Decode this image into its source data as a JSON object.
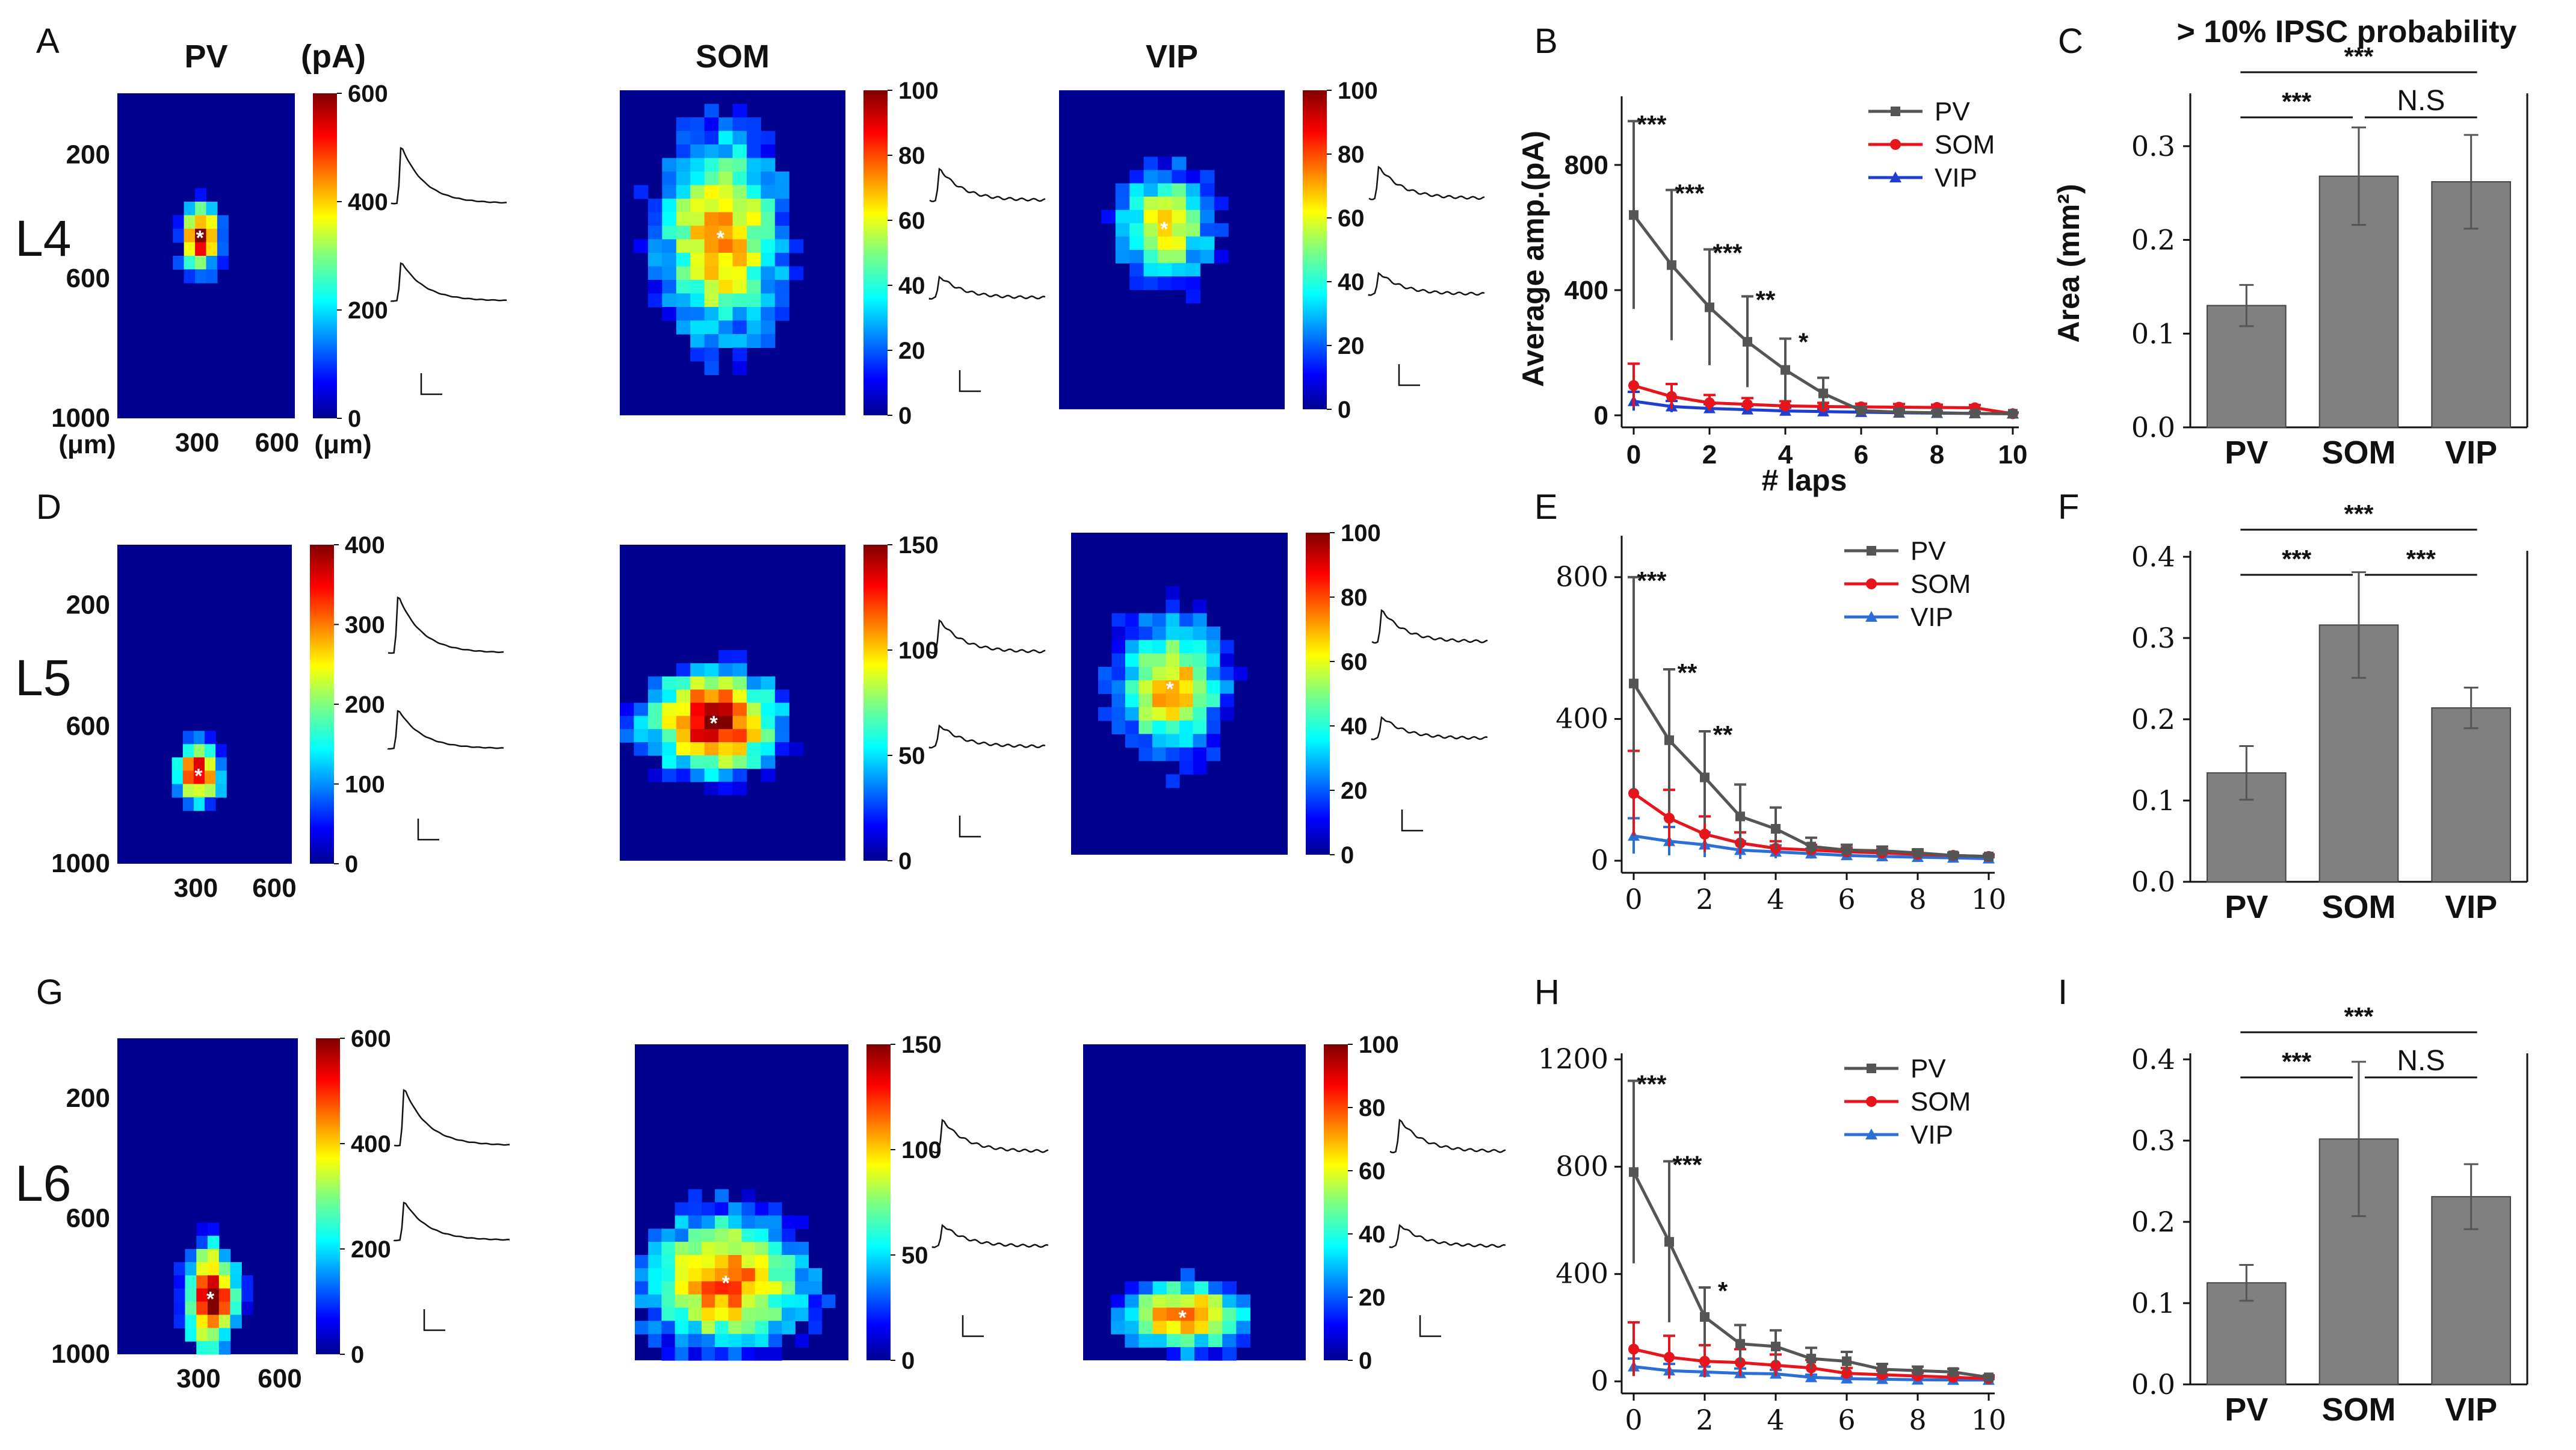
{
  "colors": {
    "PV": "#555555",
    "SOM": "#e8141c",
    "VIP": "#1f3fd0",
    "VIP_alt": "#2a6fd6",
    "bar": "#808080",
    "heat_bg": "#00008f"
  },
  "rows": [
    {
      "layer": "L4",
      "letters": {
        "heatmaps": "A",
        "line": "B",
        "bar": "C"
      },
      "heatmaps": [
        {
          "title": "PV",
          "cbar_unit": "(pA)",
          "cbar_ticks": [
            "600",
            "400",
            "200",
            "0"
          ],
          "cbar_max": 600
        },
        {
          "title": "SOM",
          "cbar_ticks": [
            "100",
            "80",
            "60",
            "40",
            "20",
            "0"
          ],
          "cbar_max": 100
        },
        {
          "title": "VIP",
          "cbar_ticks": [
            "100",
            "80",
            "60",
            "40",
            "20",
            "0"
          ],
          "cbar_max": 100
        }
      ],
      "y_ticks": [
        "200",
        "600",
        "1000"
      ],
      "y_unit": "(μm)",
      "x_ticks": [
        "300",
        "600"
      ],
      "x_unit": "(μm)"
    },
    {
      "layer": "L5",
      "letters": {
        "heatmaps": "D",
        "line": "E",
        "bar": "F"
      },
      "heatmaps": [
        {
          "title": "",
          "cbar_ticks": [
            "400",
            "300",
            "200",
            "100",
            "0"
          ],
          "cbar_max": 400
        },
        {
          "title": "",
          "cbar_ticks": [
            "150",
            "100",
            "50",
            "0"
          ],
          "cbar_max": 150
        },
        {
          "title": "",
          "cbar_ticks": [
            "100",
            "80",
            "60",
            "40",
            "20",
            "0"
          ],
          "cbar_max": 100
        }
      ],
      "y_ticks": [
        "200",
        "600",
        "1000"
      ],
      "x_ticks": [
        "300",
        "600"
      ]
    },
    {
      "layer": "L6",
      "letters": {
        "heatmaps": "G",
        "line": "H",
        "bar": "I"
      },
      "heatmaps": [
        {
          "title": "",
          "cbar_ticks": [
            "600",
            "400",
            "200",
            "0"
          ],
          "cbar_max": 600
        },
        {
          "title": "",
          "cbar_ticks": [
            "150",
            "100",
            "50",
            "0"
          ],
          "cbar_max": 150
        },
        {
          "title": "",
          "cbar_ticks": [
            "100",
            "80",
            "60",
            "40",
            "20",
            "0"
          ],
          "cbar_max": 100
        }
      ],
      "y_ticks": [
        "200",
        "600",
        "1000"
      ],
      "x_ticks": [
        "300",
        "600"
      ]
    }
  ],
  "chart_data": [
    {
      "id": "B",
      "type": "line",
      "x": [
        0,
        1,
        2,
        3,
        4,
        5,
        6,
        7,
        8,
        9,
        10
      ],
      "xlim": [
        0,
        10
      ],
      "ylim": [
        0,
        1000
      ],
      "x_ticks": [
        "0",
        "2",
        "4",
        "6",
        "8",
        "10"
      ],
      "y_ticks": [
        "0",
        "400",
        "800"
      ],
      "xlabel": "# laps",
      "ylabel": "Average amp.(pA)",
      "legend": "top-right",
      "series": [
        {
          "name": "PV",
          "values": [
            640,
            480,
            345,
            235,
            145,
            70,
            15,
            10,
            8,
            6,
            5
          ],
          "err": [
            300,
            240,
            185,
            145,
            100,
            50,
            12,
            8,
            6,
            5,
            4
          ]
        },
        {
          "name": "SOM",
          "values": [
            95,
            60,
            40,
            35,
            30,
            28,
            27,
            26,
            25,
            24,
            5
          ],
          "err": [
            70,
            40,
            25,
            20,
            15,
            12,
            10,
            10,
            9,
            9,
            4
          ]
        },
        {
          "name": "VIP",
          "values": [
            45,
            28,
            22,
            18,
            14,
            12,
            10,
            8,
            7,
            6,
            5
          ],
          "err": [
            30,
            18,
            14,
            12,
            10,
            9,
            8,
            7,
            6,
            5,
            4
          ]
        }
      ],
      "annotations": [
        {
          "x": 0,
          "text": "***"
        },
        {
          "x": 1,
          "text": "***"
        },
        {
          "x": 2,
          "text": "***"
        },
        {
          "x": 3,
          "text": "**"
        },
        {
          "x": 4,
          "text": "*"
        }
      ]
    },
    {
      "id": "C",
      "type": "bar",
      "title": "> 10% IPSC probability",
      "categories": [
        "PV",
        "SOM",
        "VIP"
      ],
      "values": [
        0.13,
        0.268,
        0.262
      ],
      "err": [
        0.022,
        0.052,
        0.05
      ],
      "ylim": [
        0,
        0.35
      ],
      "y_ticks": [
        "0.0",
        "0.1",
        "0.2",
        "0.3"
      ],
      "ylabel": "Area (mm²)",
      "sig": [
        {
          "from": "PV",
          "to": "SOM",
          "text": "***"
        },
        {
          "from": "SOM",
          "to": "VIP",
          "text": "N.S"
        },
        {
          "from": "PV",
          "to": "VIP",
          "text": "***"
        }
      ]
    },
    {
      "id": "E",
      "type": "line",
      "x": [
        0,
        1,
        2,
        3,
        4,
        5,
        6,
        7,
        8,
        9,
        10
      ],
      "xlim": [
        0,
        10
      ],
      "ylim": [
        0,
        900
      ],
      "x_ticks": [
        "0",
        "2",
        "4",
        "6",
        "8",
        "10"
      ],
      "y_ticks": [
        "0",
        "400",
        "800"
      ],
      "legend": "top-right",
      "series": [
        {
          "name": "PV",
          "values": [
            500,
            340,
            235,
            125,
            90,
            40,
            30,
            28,
            22,
            15,
            12
          ],
          "err": [
            300,
            200,
            130,
            90,
            60,
            25,
            15,
            12,
            10,
            8,
            6
          ]
        },
        {
          "name": "SOM",
          "values": [
            190,
            120,
            75,
            50,
            35,
            30,
            25,
            22,
            18,
            15,
            12
          ],
          "err": [
            120,
            80,
            50,
            30,
            20,
            15,
            12,
            10,
            8,
            6,
            5
          ]
        },
        {
          "name": "VIP",
          "values": [
            70,
            55,
            45,
            30,
            25,
            20,
            15,
            12,
            10,
            8,
            6
          ],
          "err": [
            50,
            40,
            35,
            25,
            18,
            14,
            10,
            8,
            6,
            5,
            4
          ]
        }
      ],
      "annotations": [
        {
          "x": 0,
          "text": "***"
        },
        {
          "x": 1,
          "text": "**"
        },
        {
          "x": 2,
          "text": "**"
        }
      ]
    },
    {
      "id": "F",
      "type": "bar",
      "categories": [
        "PV",
        "SOM",
        "VIP"
      ],
      "values": [
        0.134,
        0.316,
        0.214
      ],
      "err": [
        0.033,
        0.065,
        0.025
      ],
      "ylim": [
        0,
        0.4
      ],
      "y_ticks": [
        "0.0",
        "0.1",
        "0.2",
        "0.3",
        "0.4"
      ],
      "sig": [
        {
          "from": "PV",
          "to": "SOM",
          "text": "***"
        },
        {
          "from": "SOM",
          "to": "VIP",
          "text": "***"
        },
        {
          "from": "PV",
          "to": "VIP",
          "text": "***"
        }
      ]
    },
    {
      "id": "H",
      "type": "line",
      "x": [
        0,
        1,
        2,
        3,
        4,
        5,
        6,
        7,
        8,
        9,
        10
      ],
      "xlim": [
        0,
        10
      ],
      "ylim": [
        0,
        1200
      ],
      "x_ticks": [
        "0",
        "2",
        "4",
        "6",
        "8",
        "10"
      ],
      "y_ticks": [
        "0",
        "400",
        "800",
        "1200"
      ],
      "legend": "top-right",
      "series": [
        {
          "name": "PV",
          "values": [
            780,
            520,
            240,
            140,
            130,
            85,
            75,
            45,
            40,
            35,
            15
          ],
          "err": [
            340,
            300,
            110,
            70,
            60,
            40,
            35,
            20,
            15,
            12,
            8
          ]
        },
        {
          "name": "SOM",
          "values": [
            120,
            90,
            75,
            70,
            60,
            50,
            30,
            25,
            20,
            15,
            10
          ],
          "err": [
            100,
            80,
            60,
            50,
            40,
            30,
            20,
            15,
            12,
            10,
            8
          ]
        },
        {
          "name": "VIP",
          "values": [
            55,
            40,
            35,
            30,
            28,
            15,
            10,
            8,
            6,
            5,
            5
          ],
          "err": [
            30,
            25,
            20,
            18,
            15,
            10,
            8,
            6,
            5,
            4,
            4
          ]
        }
      ],
      "annotations": [
        {
          "x": 0,
          "text": "***"
        },
        {
          "x": 1,
          "text": "***"
        },
        {
          "x": 2,
          "text": "*"
        }
      ]
    },
    {
      "id": "I",
      "type": "bar",
      "categories": [
        "PV",
        "SOM",
        "VIP"
      ],
      "values": [
        0.125,
        0.302,
        0.231
      ],
      "err": [
        0.022,
        0.095,
        0.04
      ],
      "ylim": [
        0,
        0.4
      ],
      "y_ticks": [
        "0.0",
        "0.1",
        "0.2",
        "0.3",
        "0.4"
      ],
      "sig": [
        {
          "from": "PV",
          "to": "SOM",
          "text": "***"
        },
        {
          "from": "SOM",
          "to": "VIP",
          "text": "N.S"
        },
        {
          "from": "PV",
          "to": "VIP",
          "text": "***"
        }
      ]
    }
  ]
}
